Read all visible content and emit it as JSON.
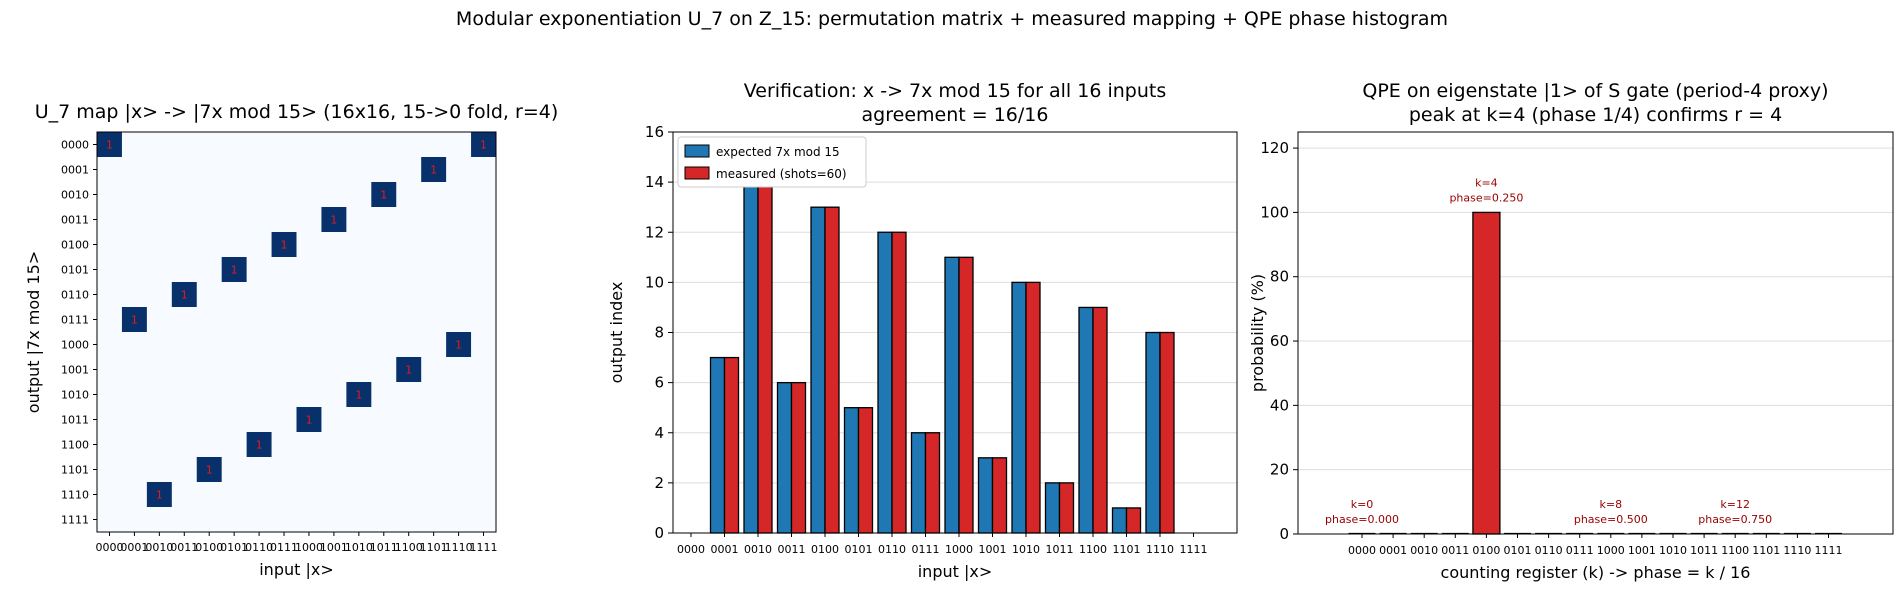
{
  "suptitle": "Modular exponentiation U_7 on Z_15: permutation matrix + measured mapping + QPE phase histogram",
  "colors": {
    "cell_bg": "#f7fbff",
    "cell_on": "#08306b",
    "cell_text": "#e31a1c",
    "expected": "#1f77b4",
    "measured": "#d62728",
    "annotation": "#990000"
  },
  "chart_data": [
    {
      "type": "heatmap",
      "title": "U_7 map  |x> -> |7x mod 15>  (16x16, 15->0 fold, r=4)",
      "xlabel": "input  |x>",
      "ylabel": "output  |7x mod 15>",
      "x_ticks": [
        "0000",
        "0001",
        "0010",
        "0011",
        "0100",
        "0101",
        "0110",
        "0111",
        "1000",
        "1001",
        "1010",
        "1011",
        "1100",
        "1101",
        "1110",
        "1111"
      ],
      "y_ticks": [
        "0000",
        "0001",
        "0010",
        "0011",
        "0100",
        "0101",
        "0110",
        "0111",
        "1000",
        "1001",
        "1010",
        "1011",
        "1100",
        "1101",
        "1110",
        "1111"
      ],
      "cell_label": "1",
      "cells": [
        [
          0,
          0
        ],
        [
          1,
          7
        ],
        [
          2,
          14
        ],
        [
          3,
          6
        ],
        [
          4,
          13
        ],
        [
          5,
          5
        ],
        [
          6,
          12
        ],
        [
          7,
          4
        ],
        [
          8,
          11
        ],
        [
          9,
          3
        ],
        [
          10,
          10
        ],
        [
          11,
          2
        ],
        [
          12,
          9
        ],
        [
          13,
          1
        ],
        [
          14,
          8
        ],
        [
          15,
          0
        ]
      ]
    },
    {
      "type": "bar",
      "title_lines": [
        "Verification: x -> 7x mod 15 for all 16 inputs",
        "agreement = 16/16"
      ],
      "xlabel": "input  |x>",
      "ylabel": "output index",
      "ylim": [
        0,
        16
      ],
      "y_ticks": [
        0,
        2,
        4,
        6,
        8,
        10,
        12,
        14,
        16
      ],
      "categories": [
        "0000",
        "0001",
        "0010",
        "0011",
        "0100",
        "0101",
        "0110",
        "0111",
        "1000",
        "1001",
        "1010",
        "1011",
        "1100",
        "1101",
        "1110",
        "1111"
      ],
      "legend_placement": "top-left",
      "grid": "horizontal",
      "series": [
        {
          "name": "expected  7x mod 15",
          "values": [
            0,
            7,
            14,
            6,
            13,
            5,
            12,
            4,
            11,
            3,
            10,
            2,
            9,
            1,
            8,
            0
          ]
        },
        {
          "name": "measured (shots=60)",
          "values": [
            0,
            7,
            14,
            6,
            13,
            5,
            12,
            4,
            11,
            3,
            10,
            2,
            9,
            1,
            8,
            0
          ]
        }
      ]
    },
    {
      "type": "bar",
      "title_lines": [
        "QPE on eigenstate |1> of S gate (period-4 proxy)",
        "peak at k=4 (phase 1/4) confirms r = 4"
      ],
      "xlabel": "counting register (k)  ->  phase = k / 16",
      "ylabel": "probability (%)",
      "ylim": [
        0,
        125
      ],
      "y_ticks": [
        0,
        20,
        40,
        60,
        80,
        100,
        120
      ],
      "categories": [
        "0000",
        "0001",
        "0010",
        "0011",
        "0100",
        "0101",
        "0110",
        "0111",
        "1000",
        "1001",
        "1010",
        "1011",
        "1100",
        "1101",
        "1110",
        "1111"
      ],
      "grid": "horizontal",
      "values": [
        0,
        0,
        0,
        0,
        100,
        0,
        0,
        0,
        0,
        0,
        0,
        0,
        0,
        0,
        0,
        0
      ],
      "annotations": [
        {
          "k": 0,
          "lines": [
            "k=0",
            "phase=0.000"
          ]
        },
        {
          "k": 4,
          "lines": [
            "k=4",
            "phase=0.250"
          ]
        },
        {
          "k": 8,
          "lines": [
            "k=8",
            "phase=0.500"
          ]
        },
        {
          "k": 12,
          "lines": [
            "k=12",
            "phase=0.750"
          ]
        }
      ]
    }
  ]
}
